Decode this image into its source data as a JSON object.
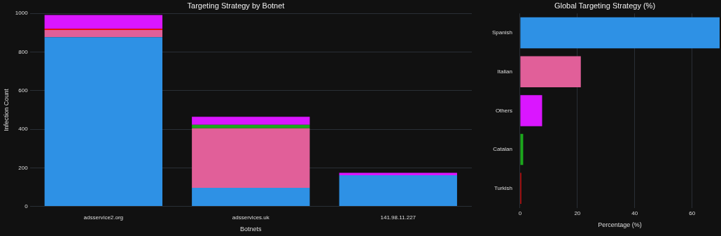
{
  "chart_data": [
    {
      "type": "bar",
      "title": "Targeting Strategy by Botnet",
      "xlabel": "Botnets",
      "ylabel": "Infection Count",
      "categories": [
        "adsservice2.org",
        "adsservices.uk",
        "141.98.11.227"
      ],
      "stacked": true,
      "series": [
        {
          "color": "#2e91e5",
          "values": [
            877,
            96,
            161
          ]
        },
        {
          "color": "#e15f99",
          "values": [
            37,
            309,
            0
          ]
        },
        {
          "color": "#fb0d0d",
          "values": [
            6,
            0,
            0
          ]
        },
        {
          "color": "#1ca71c",
          "values": [
            0,
            18,
            0
          ]
        },
        {
          "color": "#da16ff",
          "values": [
            72,
            41,
            13
          ]
        }
      ],
      "ylim": [
        0,
        1000
      ],
      "yticks": [
        0,
        200,
        400,
        600,
        800,
        1000
      ],
      "grid": "y",
      "legend": false
    },
    {
      "type": "bar",
      "orientation": "horizontal",
      "title": "Global Targeting Strategy (%)",
      "xlabel": "Percentage (%)",
      "categories": [
        "Spanish",
        "Italian",
        "Others",
        "Catalan",
        "Turkish"
      ],
      "values": [
        69.6,
        21.2,
        7.7,
        1.1,
        0.4
      ],
      "colors": [
        "#2e91e5",
        "#e15f99",
        "#da16ff",
        "#1ca71c",
        "#fb0d0d"
      ],
      "xlim": [
        0,
        69.6
      ],
      "xticks": [
        0,
        20,
        40,
        60
      ],
      "grid": "x",
      "legend": false
    }
  ]
}
